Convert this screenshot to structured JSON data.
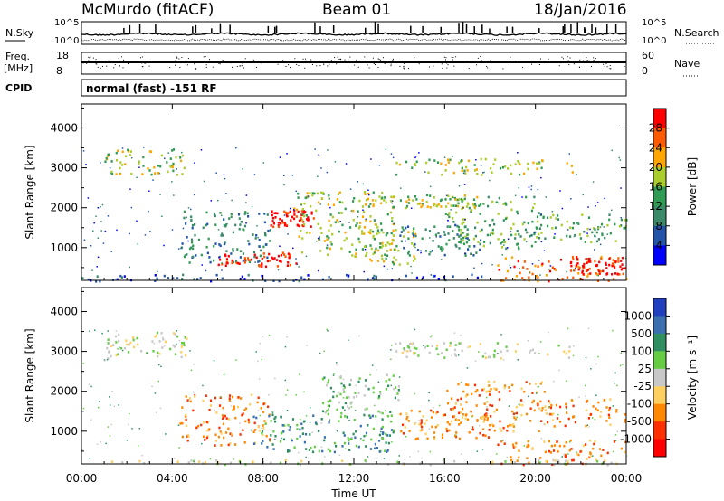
{
  "header": {
    "station": "McMurdo (fitACF)",
    "beam": "Beam 01",
    "date": "18/Jan/2016"
  },
  "strips": {
    "nsky": {
      "label": "N.Sky",
      "ticks": [
        "10^5",
        "10^0"
      ]
    },
    "nsearch": {
      "label": "N.Search",
      "ticks": [
        "10^5",
        "10^0"
      ]
    },
    "freq": {
      "label_line1": "Freq.",
      "label_line2": "[MHz]",
      "ticks": [
        "18",
        "8"
      ]
    },
    "nave": {
      "label": "Nave",
      "ticks": [
        "60",
        "0"
      ]
    },
    "cpid": {
      "label": "CPID",
      "value": "normal (fast) -151 RF"
    }
  },
  "chart_data": [
    {
      "type": "heatmap",
      "name": "power",
      "ylabel": "Slant Range [km]",
      "xlabel": "",
      "xlim": [
        "00:00",
        "00:00"
      ],
      "ylim": [
        180,
        4600
      ],
      "xticks": [
        "00:00",
        "04:00",
        "08:00",
        "12:00",
        "16:00",
        "20:00",
        "00:00"
      ],
      "yticks": [
        1000,
        2000,
        3000,
        4000
      ],
      "colorbar": {
        "label": "Power [dB]",
        "ticks": [
          4,
          8,
          12,
          16,
          20,
          24,
          28
        ],
        "range": [
          0,
          32
        ]
      },
      "colors": [
        "#0000ff",
        "#2255aa",
        "#3a8a6a",
        "#2f9b53",
        "#aacd2c",
        "#ffa500",
        "#ff5a00",
        "#ff0000"
      ],
      "regions": [
        {
          "t": [
            1.0,
            4.6
          ],
          "r": [
            2850,
            3500
          ],
          "level": 4
        },
        {
          "t": [
            13.8,
            21.6
          ],
          "r": [
            2850,
            3250
          ],
          "level": 4
        },
        {
          "t": [
            4.3,
            8.3
          ],
          "r": [
            650,
            1950
          ],
          "level": 2
        },
        {
          "t": [
            6.0,
            9.5
          ],
          "r": [
            550,
            900
          ],
          "level": 7
        },
        {
          "t": [
            8.3,
            10.2
          ],
          "r": [
            1550,
            1950
          ],
          "level": 7
        },
        {
          "t": [
            9.3,
            13.8
          ],
          "r": [
            800,
            2450
          ],
          "level": 4
        },
        {
          "t": [
            12.0,
            14.7
          ],
          "r": [
            600,
            1500
          ],
          "level": 4
        },
        {
          "t": [
            14.0,
            17.8
          ],
          "r": [
            800,
            1600
          ],
          "level": 2
        },
        {
          "t": [
            16.0,
            20.4
          ],
          "r": [
            1000,
            2300
          ],
          "level": 3
        },
        {
          "t": [
            19.8,
            24.0
          ],
          "r": [
            1150,
            1850
          ],
          "level": 3
        },
        {
          "t": [
            13.5,
            17.5
          ],
          "r": [
            2000,
            2350
          ],
          "level": 4
        },
        {
          "t": [
            18.3,
            24.0
          ],
          "r": [
            180,
            800
          ],
          "level": 6
        },
        {
          "t": [
            21.5,
            23.8
          ],
          "r": [
            350,
            800
          ],
          "level": 7
        },
        {
          "t": [
            0.0,
            18.0
          ],
          "r": [
            180,
            350
          ],
          "level": 1
        }
      ]
    },
    {
      "type": "heatmap",
      "name": "velocity",
      "ylabel": "Slant Range [km]",
      "xlabel": "Time UT",
      "xlim": [
        "00:00",
        "00:00"
      ],
      "ylim": [
        180,
        4600
      ],
      "xticks": [
        "00:00",
        "04:00",
        "08:00",
        "12:00",
        "16:00",
        "20:00",
        "00:00"
      ],
      "yticks": [
        1000,
        2000,
        3000,
        4000
      ],
      "colorbar": {
        "label": "Velocity [m s⁻¹]",
        "ticks": [
          "1000",
          "500",
          "100",
          "25",
          "-25",
          "-100",
          "-500",
          "-1000"
        ]
      },
      "colors": [
        "#2040c0",
        "#3a70b0",
        "#2f8f60",
        "#66cc44",
        "#c8c8c8",
        "#ffd060",
        "#ff8800",
        "#ff3000",
        "#ff0000"
      ],
      "regions": [
        {
          "t": [
            1.0,
            4.6
          ],
          "r": [
            2850,
            3500
          ],
          "level": 4
        },
        {
          "t": [
            13.8,
            21.6
          ],
          "r": [
            2850,
            3250
          ],
          "level": 4
        },
        {
          "t": [
            4.3,
            8.3
          ],
          "r": [
            650,
            1950
          ],
          "level": 6
        },
        {
          "t": [
            7.5,
            13.8
          ],
          "r": [
            500,
            1450
          ],
          "level": 2
        },
        {
          "t": [
            10.5,
            14.0
          ],
          "r": [
            1400,
            2450
          ],
          "level": 3
        },
        {
          "t": [
            14.0,
            18.0
          ],
          "r": [
            800,
            1600
          ],
          "level": 6
        },
        {
          "t": [
            16.0,
            20.4
          ],
          "r": [
            1000,
            2300
          ],
          "level": 6
        },
        {
          "t": [
            19.8,
            24.0
          ],
          "r": [
            1150,
            1850
          ],
          "level": 6
        },
        {
          "t": [
            18.3,
            24.0
          ],
          "r": [
            180,
            800
          ],
          "level": 6
        },
        {
          "t": [
            0.0,
            24.0
          ],
          "r": [
            180,
            300
          ],
          "level": 4
        }
      ]
    }
  ]
}
